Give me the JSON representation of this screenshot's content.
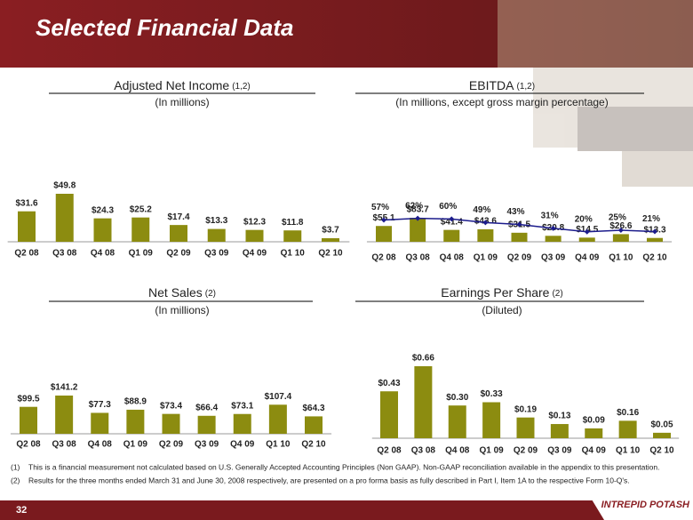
{
  "slide_title": "Selected Financial Data",
  "chart_data": [
    {
      "type": "bar",
      "title": "Adjusted Net Income",
      "title_note": "(1,2)",
      "subtitle": "(In millions)",
      "color": "#8c8c10",
      "categories": [
        "Q2 08",
        "Q3 08",
        "Q4 08",
        "Q1 09",
        "Q2 09",
        "Q3 09",
        "Q4 09",
        "Q1 10",
        "Q2 10"
      ],
      "values": [
        31.6,
        49.8,
        24.3,
        25.2,
        17.4,
        13.3,
        12.3,
        11.8,
        3.7
      ],
      "value_labels": [
        "$31.6",
        "$49.8",
        "$24.3",
        "$25.2",
        "$17.4",
        "$13.3",
        "$12.3",
        "$11.8",
        "$3.7"
      ]
    },
    {
      "type": "bar",
      "title": "EBITDA",
      "title_note": "(1,2)",
      "subtitle": "(In millions, except gross margin percentage)",
      "color": "#8c8c10",
      "categories": [
        "Q2 08",
        "Q3 08",
        "Q4 08",
        "Q1 09",
        "Q2 09",
        "Q3 09",
        "Q4 09",
        "Q1 10",
        "Q2 10"
      ],
      "values": [
        55.1,
        83.7,
        41.4,
        43.6,
        31.5,
        20.8,
        14.5,
        26.6,
        13.3
      ],
      "value_labels": [
        "$55.1",
        "$83.7",
        "$41.4",
        "$43.6",
        "$31.5",
        "$20.8",
        "$14.5",
        "$26.6",
        "$13.3"
      ],
      "line": {
        "color": "#1c1c8c",
        "values": [
          57,
          62,
          60,
          49,
          43,
          31,
          20,
          25,
          21
        ],
        "value_labels": [
          "57%",
          "62%",
          "60%",
          "49%",
          "43%",
          "31%",
          "20%",
          "25%",
          "21%"
        ]
      }
    },
    {
      "type": "bar",
      "title": "Net Sales",
      "title_note": "(2)",
      "subtitle": "(In millions)",
      "color": "#8c8c10",
      "categories": [
        "Q2 08",
        "Q3 08",
        "Q4 08",
        "Q1 09",
        "Q2 09",
        "Q3 09",
        "Q4 09",
        "Q1 10",
        "Q2 10"
      ],
      "values": [
        99.5,
        141.2,
        77.3,
        88.9,
        73.4,
        66.4,
        73.1,
        107.4,
        64.3
      ],
      "value_labels": [
        "$99.5",
        "$141.2",
        "$77.3",
        "$88.9",
        "$73.4",
        "$66.4",
        "$73.1",
        "$107.4",
        "$64.3"
      ]
    },
    {
      "type": "bar",
      "title": "Earnings Per Share",
      "title_note": "(2)",
      "subtitle": "(Diluted)",
      "color": "#8c8c10",
      "categories": [
        "Q2 08",
        "Q3 08",
        "Q4 08",
        "Q1 09",
        "Q2 09",
        "Q3 09",
        "Q4 09",
        "Q1 10",
        "Q2 10"
      ],
      "values": [
        0.43,
        0.66,
        0.3,
        0.33,
        0.19,
        0.13,
        0.09,
        0.16,
        0.05
      ],
      "value_labels": [
        "$0.43",
        "$0.66",
        "$0.30",
        "$0.33",
        "$0.19",
        "$0.13",
        "$0.09",
        "$0.16",
        "$0.05"
      ]
    }
  ],
  "footnotes": [
    {
      "marker": "(1)",
      "text": "This is a financial  measurement not calculated based on U.S. Generally Accepted Accounting Principles (Non GAAP). Non-GAAP reconciliation available in the appendix to this presentation."
    },
    {
      "marker": "(2)",
      "text": "Results for the three months ended March 31 and June 30, 2008 respectively, are presented on a pro forma basis as fully described in Part I, Item 1A to the respective Form 10-Q's."
    }
  ],
  "page_number": "32",
  "logo": "INTREPID POTASH"
}
